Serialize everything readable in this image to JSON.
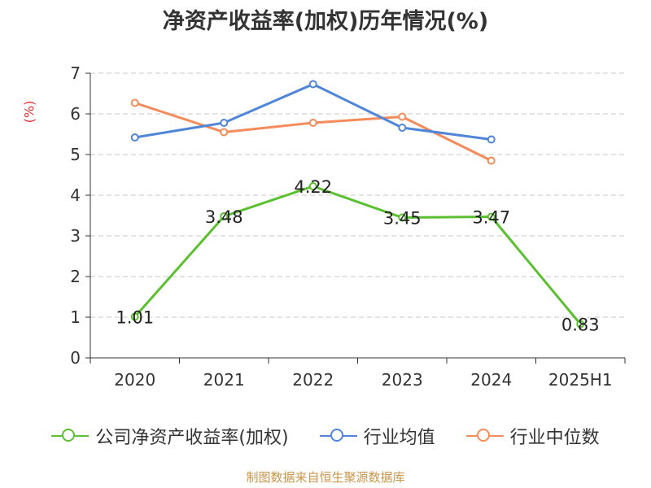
{
  "title": "净资产收益率(加权)历年情况(%)",
  "y_unit": "(%)",
  "source": "制图数据来自恒生聚源数据库",
  "chart_data": {
    "type": "line",
    "categories": [
      "2020",
      "2021",
      "2022",
      "2023",
      "2024",
      "2025H1"
    ],
    "ylim": [
      0,
      7
    ],
    "yticks": [
      0,
      1,
      2,
      3,
      4,
      5,
      6,
      7
    ],
    "grid": true,
    "legend_position": "bottom",
    "series": [
      {
        "name": "公司净资产收益率(加权)",
        "color": "#5ac02f",
        "values": [
          1.01,
          3.48,
          4.22,
          3.45,
          3.47,
          0.83
        ],
        "labels": [
          "1.01",
          "3.48",
          "4.22",
          "3.45",
          "3.47",
          "0.83"
        ]
      },
      {
        "name": "行业均值",
        "color": "#4f86d8",
        "values": [
          5.42,
          5.78,
          6.73,
          5.66,
          5.37,
          null
        ]
      },
      {
        "name": "行业中位数",
        "color": "#f58b5a",
        "values": [
          6.27,
          5.55,
          5.78,
          5.93,
          4.85,
          null
        ]
      }
    ]
  }
}
